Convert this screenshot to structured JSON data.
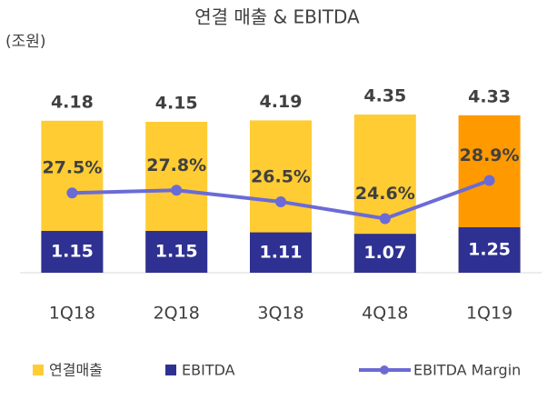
{
  "chart_data": {
    "type": "bar-line",
    "title": "연결 매출 & EBITDA",
    "unit_label": "(조원)",
    "categories": [
      "1Q18",
      "2Q18",
      "3Q18",
      "4Q18",
      "1Q19"
    ],
    "ylim": [
      0,
      5
    ],
    "y2lim": [
      18.5,
      39
    ],
    "series": [
      {
        "name": "연결매출",
        "color": "#FFCC33",
        "bar_colors": [
          "#FFCC33",
          "#FFCC33",
          "#FFCC33",
          "#FFCC33",
          "#FF9900"
        ],
        "values": [
          4.18,
          4.15,
          4.19,
          4.35,
          4.33
        ]
      },
      {
        "name": "EBITDA",
        "color": "#2E3192",
        "values": [
          1.15,
          1.15,
          1.11,
          1.07,
          1.25
        ]
      },
      {
        "name": "EBITDA Margin",
        "color": "#6B6BD6",
        "axis": "y2",
        "values": [
          27.5,
          27.8,
          26.5,
          24.6,
          28.9
        ],
        "value_labels": [
          "27.5%",
          "27.8%",
          "26.5%",
          "24.6%",
          "28.9%"
        ]
      }
    ]
  }
}
